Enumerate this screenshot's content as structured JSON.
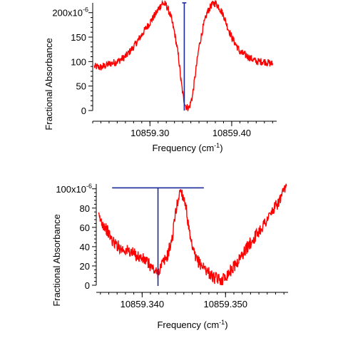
{
  "chart_data": [
    {
      "type": "line",
      "xlabel_main": "Frequency (cm",
      "xlabel_sup": "-1",
      "xlabel_tail": ")",
      "ylabel": "Fractional Absorbance",
      "xlim": [
        10859.23,
        10859.455
      ],
      "ylim": [
        0,
        0.00022
      ],
      "x_ticks": [
        10859.3,
        10859.4
      ],
      "x_tick_labels": [
        "10859.30",
        "10859.40"
      ],
      "y_ticks": [
        0,
        5e-05,
        0.0001,
        0.00015,
        0.0002
      ],
      "y_tick_labels": [
        "0",
        "50",
        "100",
        "150",
        "200x10"
      ],
      "y_top_exponent": "-6",
      "series": [
        {
          "color": "#ff0000",
          "x": [
            10859.232,
            10859.24,
            10859.25,
            10859.26,
            10859.27,
            10859.28,
            10859.29,
            10859.3,
            10859.308,
            10859.315,
            10859.32,
            10859.325,
            10859.33,
            10859.335,
            10859.338,
            10859.341,
            10859.344,
            10859.348,
            10859.352,
            10859.356,
            10859.36,
            10859.365,
            10859.37,
            10859.375,
            10859.38,
            10859.385,
            10859.39,
            10859.395,
            10859.4,
            10859.405,
            10859.41,
            10859.42,
            10859.43,
            10859.44,
            10859.45
          ],
          "y": [
            9e-05,
            8.8e-05,
            9.5e-05,
            0.0001,
            0.00011,
            0.00013,
            0.000155,
            0.00018,
            0.0002,
            0.00022,
            0.000215,
            0.000195,
            0.00016,
            0.00011,
            6e-05,
            2.5e-05,
            8e-06,
            5e-06,
            3e-05,
            8e-05,
            0.00013,
            0.00017,
            0.0002,
            0.000215,
            0.00022,
            0.00021,
            0.000195,
            0.00017,
            0.00015,
            0.000135,
            0.00012,
            0.00011,
            0.0001,
            0.0001,
            9.5e-05
          ]
        }
      ],
      "stick": {
        "color": "#1a2a9a",
        "x": 10859.342,
        "y": 0.00022,
        "cap_halfwidth": 0.0025
      }
    },
    {
      "type": "line",
      "xlabel_main": "Frequency (cm",
      "xlabel_sup": "-1",
      "xlabel_tail": ")",
      "ylabel": "Fractional Absorbance",
      "xlim": [
        10859.3345,
        10859.3575
      ],
      "ylim": [
        0,
        0.000105
      ],
      "x_ticks": [
        10859.34,
        10859.35
      ],
      "x_tick_labels": [
        "10859.340",
        "10859.350"
      ],
      "y_ticks": [
        0,
        2e-05,
        4e-05,
        6e-05,
        8e-05,
        0.0001
      ],
      "y_tick_labels": [
        "0",
        "20",
        "40",
        "60",
        "80",
        "100x10"
      ],
      "y_top_exponent": "-6",
      "series": [
        {
          "color": "#ff0000",
          "x": [
            10859.3348,
            10859.3356,
            10859.3365,
            10859.3375,
            10859.3385,
            10859.3395,
            10859.3405,
            10859.3412,
            10859.3418,
            10859.3424,
            10859.343,
            10859.3436,
            10859.344,
            10859.3446,
            10859.3452,
            10859.3458,
            10859.3464,
            10859.347,
            10859.3478,
            10859.3485,
            10859.3495,
            10859.3505,
            10859.3515,
            10859.3525,
            10859.3535,
            10859.3545,
            10859.3555,
            10859.3565,
            10859.3573
          ],
          "y": [
            7e-05,
            6e-05,
            4.5e-05,
            3.8e-05,
            3.5e-05,
            3e-05,
            2.5e-05,
            1.8e-05,
            1.2e-05,
            2.2e-05,
            3e-05,
            4.8e-05,
            7.5e-05,
            0.0001,
            8.5e-05,
            4.5e-05,
            2.8e-05,
            2.2e-05,
            1.5e-05,
            8e-06,
            5e-06,
            1.4e-05,
            2.5e-05,
            3.8e-05,
            5e-05,
            6.2e-05,
            7.5e-05,
            8.8e-05,
            0.000102
          ]
        }
      ],
      "stick": {
        "color": "#1a2a9a",
        "x": 10859.3419,
        "y": 0.000101,
        "cap_halfwidth": 0.0055
      }
    }
  ]
}
